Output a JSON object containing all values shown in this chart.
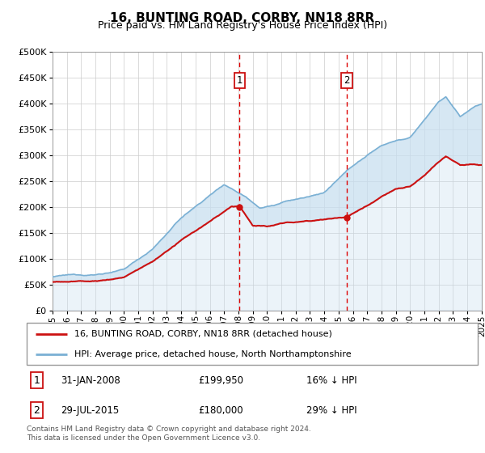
{
  "title": "16, BUNTING ROAD, CORBY, NN18 8RR",
  "subtitle": "Price paid vs. HM Land Registry's House Price Index (HPI)",
  "hpi_color": "#7ab0d4",
  "price_color": "#cc1111",
  "fill_color": "#c8dff0",
  "ylim": [
    0,
    500000
  ],
  "yticks": [
    0,
    50000,
    100000,
    150000,
    200000,
    250000,
    300000,
    350000,
    400000,
    450000,
    500000
  ],
  "sale1_date": 2008.08,
  "sale1_price": 199950,
  "sale2_date": 2015.58,
  "sale2_price": 180000,
  "legend_line1": "16, BUNTING ROAD, CORBY, NN18 8RR (detached house)",
  "legend_line2": "HPI: Average price, detached house, North Northamptonshire",
  "footer": "Contains HM Land Registry data © Crown copyright and database right 2024.\nThis data is licensed under the Open Government Licence v3.0.",
  "xmin": 1995,
  "xmax": 2025
}
